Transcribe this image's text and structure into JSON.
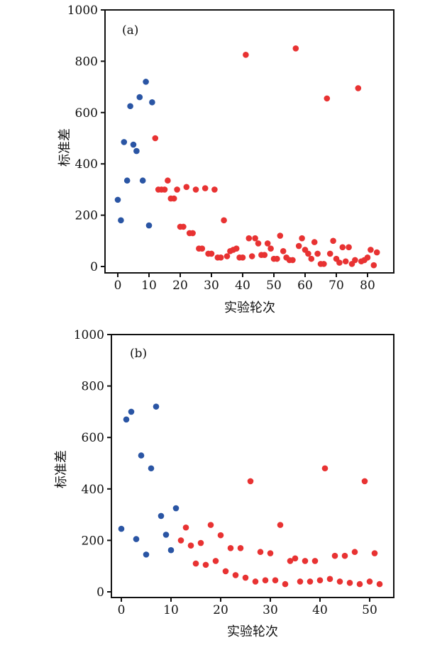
{
  "colors": {
    "early": "#2a55a4",
    "late": "#e83232",
    "axis": "#111111"
  },
  "chart_data": [
    {
      "type": "scatter",
      "annotation": "(a)",
      "xlabel": "实验轮次",
      "ylabel": "标准差",
      "xlim": [
        -2,
        85
      ],
      "ylim": [
        -20,
        1000
      ],
      "xticks": [
        0,
        10,
        20,
        30,
        40,
        50,
        60,
        70,
        80
      ],
      "yticks": [
        0,
        200,
        400,
        600,
        800,
        1000
      ],
      "grid": false,
      "series": [
        {
          "color": "#2a55a4",
          "x": [
            0,
            1,
            2,
            3,
            4,
            5,
            6,
            7,
            8,
            9,
            10,
            11
          ],
          "y": [
            260,
            180,
            485,
            335,
            625,
            475,
            450,
            660,
            335,
            720,
            160,
            640
          ]
        },
        {
          "color": "#e83232",
          "x": [
            12,
            13,
            14,
            15,
            16,
            17,
            18,
            19,
            20,
            21,
            22,
            23,
            24,
            25,
            26,
            27,
            28,
            29,
            30,
            31,
            32,
            33,
            34,
            35,
            36,
            37,
            38,
            39,
            40,
            41,
            42,
            43,
            44,
            45,
            46,
            47,
            48,
            49,
            50,
            51,
            52,
            53,
            54,
            55,
            56,
            57,
            58,
            59,
            60,
            61,
            62,
            63,
            64,
            65,
            66,
            67,
            68,
            69,
            70,
            71,
            72,
            73,
            74,
            75,
            76,
            77,
            78,
            79,
            80,
            81,
            82,
            83
          ],
          "y": [
            500,
            300,
            300,
            300,
            335,
            265,
            265,
            300,
            155,
            155,
            310,
            130,
            130,
            300,
            70,
            70,
            305,
            50,
            50,
            300,
            35,
            35,
            180,
            40,
            60,
            65,
            70,
            35,
            35,
            825,
            110,
            40,
            110,
            90,
            45,
            45,
            90,
            70,
            30,
            30,
            120,
            60,
            35,
            25,
            25,
            850,
            80,
            110,
            65,
            50,
            30,
            95,
            50,
            10,
            10,
            655,
            50,
            100,
            30,
            15,
            75,
            20,
            75,
            10,
            25,
            695,
            20,
            25,
            35,
            65,
            5,
            55
          ]
        }
      ]
    },
    {
      "type": "scatter",
      "annotation": "(b)",
      "xlabel": "实验轮次",
      "ylabel": "标准差",
      "xlim": [
        -2,
        55
      ],
      "ylim": [
        -20,
        1000
      ],
      "xticks": [
        0,
        10,
        20,
        30,
        40,
        50
      ],
      "yticks": [
        0,
        200,
        400,
        600,
        800,
        1000
      ],
      "grid": false,
      "series": [
        {
          "color": "#2a55a4",
          "x": [
            0,
            1,
            2,
            3,
            4,
            5,
            6,
            7,
            8,
            9,
            10,
            11
          ],
          "y": [
            245,
            670,
            700,
            205,
            530,
            145,
            480,
            720,
            295,
            222,
            162,
            325
          ]
        },
        {
          "color": "#e83232",
          "x": [
            12,
            13,
            14,
            15,
            16,
            17,
            18,
            19,
            20,
            21,
            22,
            23,
            24,
            25,
            26,
            27,
            28,
            29,
            30,
            31,
            32,
            33,
            34,
            35,
            36,
            37,
            38,
            39,
            40,
            41,
            42,
            43,
            44,
            45,
            46,
            47,
            48,
            49,
            50,
            51,
            52
          ],
          "y": [
            200,
            250,
            180,
            110,
            190,
            105,
            260,
            120,
            220,
            80,
            170,
            65,
            170,
            55,
            430,
            40,
            155,
            45,
            150,
            45,
            260,
            30,
            120,
            130,
            40,
            120,
            40,
            120,
            45,
            480,
            50,
            140,
            40,
            140,
            35,
            155,
            30,
            430,
            40,
            150,
            30
          ]
        }
      ]
    }
  ]
}
